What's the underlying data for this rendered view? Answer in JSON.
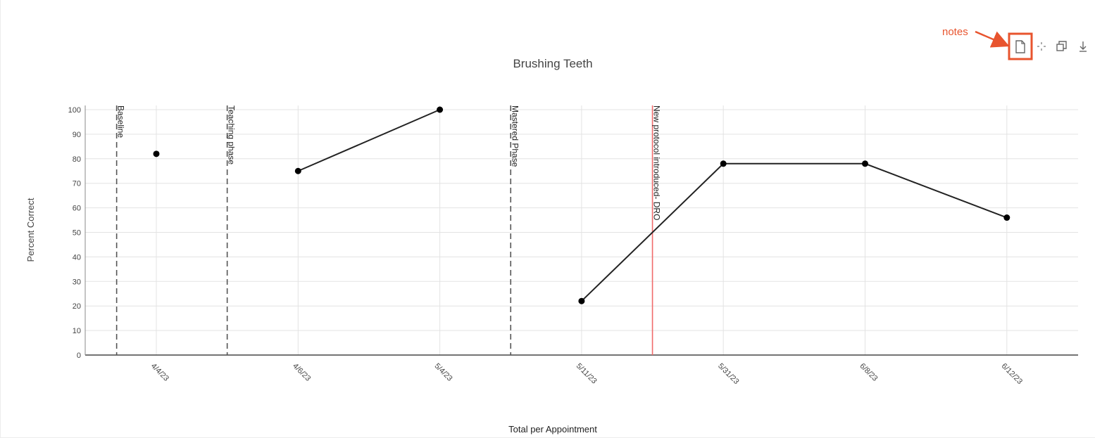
{
  "annotation": {
    "label": "notes"
  },
  "toolbar": {
    "icons": [
      "notes-icon",
      "pan-icon",
      "copy-icon",
      "download-icon"
    ],
    "highlight_color": "#e8542e"
  },
  "chart_data": {
    "type": "line",
    "title": "Brushing Teeth",
    "ylabel": "Percent Correct",
    "xlabel": "Total per Appointment",
    "ylim": [
      0,
      100
    ],
    "yticks": [
      0,
      10,
      20,
      30,
      40,
      50,
      60,
      70,
      80,
      90,
      100
    ],
    "categories": [
      "4/4/23",
      "4/6/23",
      "5/4/23",
      "5/11/23",
      "5/31/23",
      "6/8/23",
      "6/12/23"
    ],
    "values": [
      82,
      75,
      100,
      22,
      78,
      78,
      56
    ],
    "segments": [
      [
        0
      ],
      [
        1,
        2
      ],
      [
        3,
        4,
        5,
        6
      ]
    ],
    "phase_lines": [
      {
        "label": "Baseline",
        "after_index": -0.28,
        "style": "dashed",
        "color": "#555555"
      },
      {
        "label": "Teaching phase",
        "after_index": 0.5,
        "style": "dashed",
        "color": "#555555"
      },
      {
        "label": "Mastered Phase",
        "after_index": 2.5,
        "style": "dashed",
        "color": "#555555"
      },
      {
        "label": "New protocol introduced- DRO",
        "after_index": 3.5,
        "style": "solid",
        "color": "#f06b6b"
      }
    ],
    "series_color": "#222222",
    "grid": true,
    "legend": "none"
  }
}
